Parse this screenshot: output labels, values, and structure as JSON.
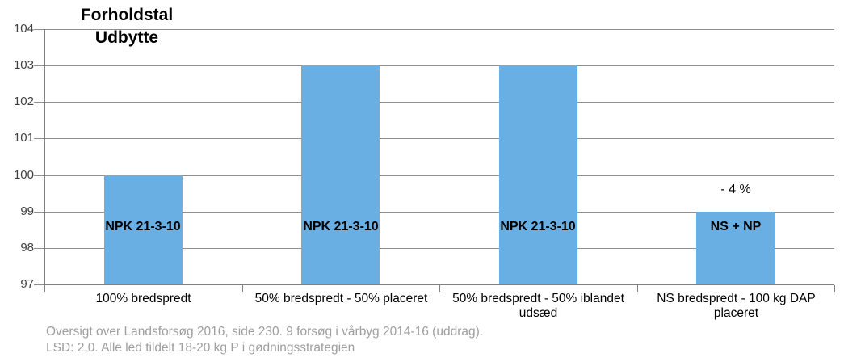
{
  "chart_data": {
    "type": "bar",
    "title_lines": [
      "Forholdstal",
      "Udbytte"
    ],
    "categories": [
      "100% bredspredt",
      "50% bredspredt - 50% placeret",
      "50% bredspredt - 50% iblandet udsæd",
      "NS bredspredt - 100 kg DAP placeret"
    ],
    "values": [
      100,
      103,
      103,
      99
    ],
    "bar_labels": [
      "NPK 21-3-10",
      "NPK 21-3-10",
      "NPK 21-3-10",
      "NS + NP"
    ],
    "annotations": [
      {
        "category_index": 3,
        "text": "- 4 %"
      }
    ],
    "y_ticks": [
      97,
      98,
      99,
      100,
      101,
      102,
      103,
      104
    ],
    "ylim": [
      97,
      104
    ],
    "xlabel": "",
    "ylabel": "",
    "grid": true,
    "legend": "none",
    "footnote_lines": [
      "Oversigt over Landsforsøg 2016, side 230. 9 forsøg i vårbyg 2014-16 (uddrag).",
      "LSD: 2,0. Alle led tildelt 18-20 kg P i gødningsstrategien"
    ],
    "colors": {
      "bar": "#6AAFE3",
      "gridline": "#8F8F8F",
      "axis": "#808080",
      "tick_label": "#404040",
      "category_label": "#000000",
      "footnote": "#9E9E9E",
      "background": "#FFFFFF"
    }
  }
}
